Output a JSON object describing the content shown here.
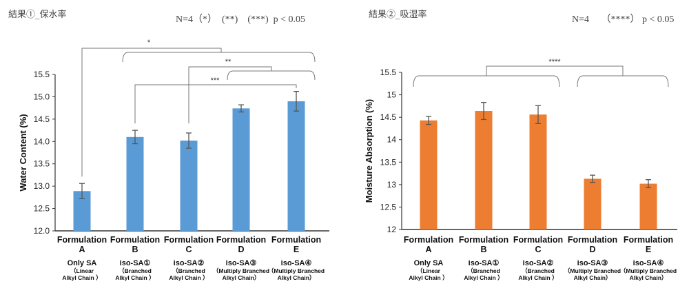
{
  "panels": [
    {
      "title": "結果①_保水率",
      "sig_note": "N=4（*）　(**)　(***)  p < 0.05"
    },
    {
      "title": "結果②_吸湿率",
      "sig_note": "N=4　 （****） p < 0.05"
    }
  ],
  "chart_data": [
    {
      "type": "bar",
      "title": "結果①_保水率",
      "xlabel": "",
      "ylabel": "Water Content (%)",
      "ylim": [
        12.0,
        15.5
      ],
      "yticks": [
        "12.0",
        "12.5",
        "13.0",
        "13.5",
        "14.0",
        "14.5",
        "15.0",
        "15.5"
      ],
      "ytick_values": [
        12.0,
        12.5,
        13.0,
        13.5,
        14.0,
        14.5,
        15.0,
        15.5
      ],
      "grid": false,
      "color": "#5b9bd5",
      "categories": [
        {
          "line1": "Formulation",
          "line2": "A",
          "line3": "Only SA",
          "line4": "（Linear",
          "line5": "Alkyl Chain ）"
        },
        {
          "line1": "Formulation",
          "line2": "B",
          "line3": "iso-SA①",
          "line4": "（Branched",
          "line5": "Alkyl Chain ）"
        },
        {
          "line1": "Formulation",
          "line2": "C",
          "line3": "iso-SA②",
          "line4": "（Branched",
          "line5": "Alkyl Chain ）"
        },
        {
          "line1": "Formulation",
          "line2": "D",
          "line3": "iso-SA③",
          "line4": "（Multiply Branched",
          "line5": "Alkyl Chain）"
        },
        {
          "line1": "Formulation",
          "line2": "E",
          "line3": "iso-SA④",
          "line4": "（Multiply Branched",
          "line5": "Alkyl Chain）"
        }
      ],
      "values": [
        12.89,
        14.1,
        14.02,
        14.74,
        14.9
      ],
      "errors": [
        0.17,
        0.15,
        0.17,
        0.08,
        0.22
      ],
      "significance": [
        {
          "label": "*",
          "from": "A",
          "to_group": [
            "B",
            "C",
            "D",
            "E"
          ]
        },
        {
          "label": "**",
          "from": "C",
          "to_group": [
            "D",
            "E"
          ]
        },
        {
          "label": "***",
          "from": "B",
          "to": "E"
        }
      ]
    },
    {
      "type": "bar",
      "title": "結果②_吸湿率",
      "xlabel": "",
      "ylabel": "Moisture Absorption (%)",
      "ylim": [
        12,
        15.5
      ],
      "yticks": [
        "12",
        "12.5",
        "13",
        "13.5",
        "14",
        "14.5",
        "15",
        "15.5"
      ],
      "ytick_values": [
        12,
        12.5,
        13,
        13.5,
        14,
        14.5,
        15,
        15.5
      ],
      "grid": false,
      "color": "#ed7d31",
      "categories": [
        {
          "line1": "Formulation",
          "line2": "A",
          "line3": "Only SA",
          "line4": "（Linear",
          "line5": "Alkyl Chain ）"
        },
        {
          "line1": "Formulation",
          "line2": "B",
          "line3": "iso-SA①",
          "line4": "（Branched",
          "line5": "Alkyl Chain ）"
        },
        {
          "line1": "Formulation",
          "line2": "C",
          "line3": "iso-SA②",
          "line4": "（Branched",
          "line5": "Alkyl Chain ）"
        },
        {
          "line1": "Formulation",
          "line2": "D",
          "line3": "iso-SA③",
          "line4": "（Multiply Branched",
          "line5": "Alkyl Chain）"
        },
        {
          "line1": "Formulation",
          "line2": "E",
          "line3": "iso-SA④",
          "line4": "（Multiply Branched",
          "line5": "Alkyl Chain）"
        }
      ],
      "values": [
        14.43,
        14.64,
        14.56,
        13.13,
        13.02
      ],
      "errors": [
        0.09,
        0.19,
        0.2,
        0.08,
        0.09
      ],
      "significance": [
        {
          "label": "****",
          "from_group": [
            "A",
            "B",
            "C"
          ],
          "to_group": [
            "D",
            "E"
          ]
        }
      ]
    }
  ]
}
